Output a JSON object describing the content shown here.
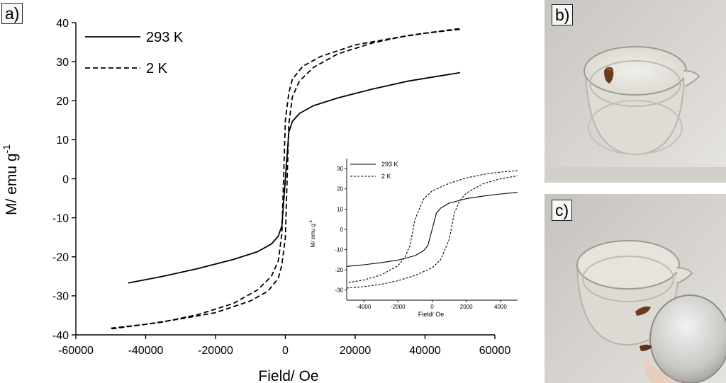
{
  "panels": {
    "a": "a)",
    "b": "b)",
    "c": "c)"
  },
  "chart_data": [
    {
      "type": "line",
      "title": "",
      "xlabel": "Field/ Oe",
      "ylabel": "M/ emu g",
      "ylabel_exponent": "-1",
      "xlim": [
        -60000,
        60000
      ],
      "ylim": [
        -40,
        40
      ],
      "xticks": [
        -60000,
        -40000,
        -20000,
        0,
        20000,
        40000,
        60000
      ],
      "yticks": [
        -40,
        -30,
        -20,
        -10,
        0,
        10,
        20,
        30,
        40
      ],
      "grid": false,
      "legend": "top-left",
      "series": [
        {
          "name": "293 K",
          "dash": "solid",
          "x": [
            -45000,
            -35000,
            -25000,
            -15000,
            -8000,
            -4000,
            -2000,
            -1000,
            0,
            1000,
            2000,
            4000,
            8000,
            15000,
            25000,
            35000,
            50000
          ],
          "y": [
            -26.7,
            -25.0,
            -23.0,
            -20.7,
            -18.7,
            -16.7,
            -14.7,
            -12.0,
            0,
            12.0,
            14.7,
            16.7,
            18.7,
            20.7,
            23.0,
            25.0,
            27.2
          ]
        },
        {
          "name": "2 K",
          "dash": "dashed",
          "branches": [
            {
              "x": [
                50000,
                40000,
                30000,
                20000,
                10000,
                5000,
                2000,
                1000,
                0,
                -500,
                -1000,
                -2000,
                -4000,
                -8000,
                -15000,
                -25000,
                -35000,
                -50000
              ],
              "y": [
                38.3,
                37.3,
                35.9,
                34.3,
                31.3,
                28.8,
                25.5,
                22.0,
                15.0,
                0,
                -14.0,
                -21.0,
                -25.0,
                -28.5,
                -32.0,
                -34.8,
                -36.7,
                -38.5
              ]
            },
            {
              "x": [
                -50000,
                -40000,
                -30000,
                -20000,
                -10000,
                -5000,
                -2000,
                -1000,
                0,
                500,
                1000,
                2000,
                4000,
                8000,
                15000,
                25000,
                35000,
                50000
              ],
              "y": [
                -38.3,
                -37.3,
                -35.9,
                -34.3,
                -31.3,
                -28.8,
                -25.5,
                -22.0,
                -15.0,
                0,
                14.0,
                21.0,
                25.0,
                28.5,
                32.0,
                34.8,
                36.7,
                38.5
              ]
            }
          ]
        }
      ]
    },
    {
      "type": "line",
      "title": "",
      "xlabel": "Field/ Oe",
      "ylabel": "M/ emu g",
      "ylabel_exponent": "-1",
      "xlim": [
        -5000,
        5000
      ],
      "ylim": [
        -35,
        35
      ],
      "xticks": [
        -4000,
        -2000,
        0,
        2000,
        4000
      ],
      "yticks": [
        -30,
        -20,
        -10,
        0,
        10,
        20,
        30
      ],
      "grid": false,
      "legend": "top-left",
      "series": [
        {
          "name": "293 K",
          "dash": "solid",
          "x": [
            -5000,
            -4000,
            -3000,
            -2000,
            -1000,
            -500,
            -250,
            0,
            250,
            500,
            1000,
            2000,
            3000,
            4000,
            5000
          ],
          "y": [
            -18.3,
            -17.5,
            -16.5,
            -15.2,
            -13.0,
            -10.5,
            -8.0,
            0,
            8.0,
            10.5,
            13.0,
            15.2,
            16.5,
            17.5,
            18.3
          ]
        },
        {
          "name": "2 K",
          "dash": "dashed",
          "branches": [
            {
              "x": [
                5000,
                4000,
                3000,
                2000,
                1000,
                0,
                -500,
                -1000,
                -1300,
                -1600,
                -2000,
                -3000,
                -4000,
                -5000
              ],
              "y": [
                29.0,
                28.3,
                27.2,
                25.4,
                22.8,
                19.0,
                15.0,
                5.0,
                -8.0,
                -14.0,
                -18.0,
                -22.6,
                -25.0,
                -26.5
              ]
            },
            {
              "x": [
                -5000,
                -4000,
                -3000,
                -2000,
                -1000,
                0,
                500,
                1000,
                1300,
                1600,
                2000,
                3000,
                4000,
                5000
              ],
              "y": [
                -29.0,
                -28.3,
                -27.2,
                -25.4,
                -22.8,
                -19.0,
                -15.0,
                -5.0,
                8.0,
                14.0,
                18.0,
                22.6,
                25.0,
                26.5
              ]
            }
          ]
        }
      ]
    }
  ]
}
